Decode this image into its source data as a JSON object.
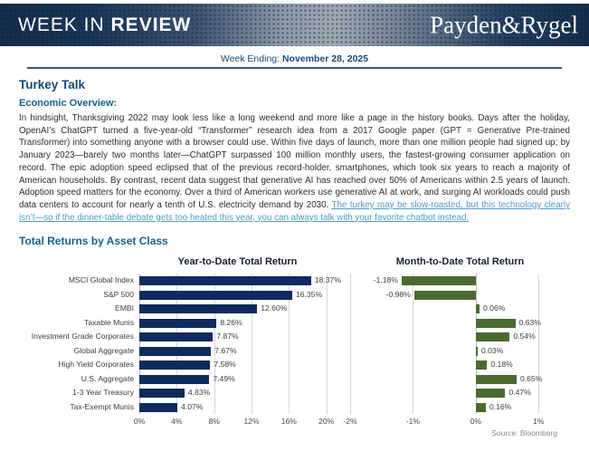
{
  "header": {
    "title_light": "WEEK IN ",
    "title_bold": "REVIEW",
    "logo": "Payden&Rygel"
  },
  "week_ending": {
    "label": "Week Ending: ",
    "date": "November 28, 2025"
  },
  "article": {
    "title": "Turkey Talk",
    "section_heading": "Economic Overview:",
    "body": "In hindsight, Thanksgiving 2022 may look less like a long weekend and more like a page in the history books. Days after the holiday, OpenAI’s ChatGPT turned a five-year-old “Transformer” research idea from a 2017 Google paper (GPT = Generative Pre-trained Transformer) into something anyone with a browser could use. Within five days of launch, more than one million people had signed up; by January 2023—barely two months later—ChatGPT surpassed 100 million monthly users, the fastest-growing consumer application on record. The epic adoption speed eclipsed that of the previous record-holder, smartphones, which took six years to reach a majority of American households. By contrast, recent data suggest that generative AI has reached over 50% of Americans within 2.5 years of launch. Adoption speed matters for the economy. Over a third of American workers use generative AI at work, and surging AI workloads could push data centers to account for nearly a tenth of U.S. electricity demand by 2030. ",
    "link_text": "The turkey may be slow-roasted, but this technology clearly isn’t—so if the dinner-table debate gets too heated this year, you can always talk with your favorite chatbot instead."
  },
  "charts_section": {
    "heading": "Total Returns by Asset Class",
    "source": "Source: Bloomberg"
  },
  "chart_data": [
    {
      "type": "bar",
      "orientation": "horizontal",
      "title": "Year-to-Date Total Return",
      "categories": [
        "MSCI Global Index",
        "S&P 500",
        "EMBI",
        "Taxable Munis",
        "Investment Grade Corporates",
        "Global Aggregate",
        "High Yield Corporates",
        "U.S. Aggregate",
        "1-3 Year Treasury",
        "Tax-Exempt Munis"
      ],
      "values": [
        18.37,
        16.35,
        12.6,
        8.26,
        7.87,
        7.67,
        7.58,
        7.49,
        4.83,
        4.07
      ],
      "labels": [
        "18.37%",
        "16.35%",
        "12.60%",
        "8.26%",
        "7.87%",
        "7.67%",
        "7.58%",
        "7.49%",
        "4.83%",
        "4.07%"
      ],
      "xlim": [
        0,
        21
      ],
      "ticks": [
        0,
        4,
        8,
        12,
        16,
        20
      ],
      "tick_labels": [
        "0%",
        "4%",
        "8%",
        "12%",
        "16%",
        "20%"
      ],
      "bar_color": "#0e2a5f",
      "grid": true,
      "show_category_labels": true,
      "legend": "none"
    },
    {
      "type": "bar",
      "orientation": "horizontal",
      "title": "Month-to-Date Total Return",
      "categories": [
        "MSCI Global Index",
        "S&P 500",
        "EMBI",
        "Taxable Munis",
        "Investment Grade Corporates",
        "Global Aggregate",
        "High Yield Corporates",
        "U.S. Aggregate",
        "1-3 Year Treasury",
        "Tax-Exempt Munis"
      ],
      "values": [
        -1.18,
        -0.98,
        0.06,
        0.63,
        0.54,
        0.03,
        0.18,
        0.65,
        0.47,
        0.16
      ],
      "labels": [
        "-1.18%",
        "-0.98%",
        "0.06%",
        "0.63%",
        "0.54%",
        "0.03%",
        "0.18%",
        "0.65%",
        "0.47%",
        "0.16%"
      ],
      "xlim": [
        -2,
        1.5
      ],
      "ticks": [
        -2,
        -1,
        0,
        1
      ],
      "tick_labels": [
        "-2%",
        "-1%",
        "0%",
        "1%"
      ],
      "bar_color": "#4a6b2e",
      "grid": true,
      "show_category_labels": false,
      "legend": "none"
    }
  ],
  "colors": {
    "masthead_navy": "#142e4c",
    "heading_blue": "#16608e",
    "title_navy": "#124a7a",
    "link_blue": "#4d9bca",
    "ytd_bar": "#0e2a5f",
    "mtd_bar": "#4a6b2e",
    "rule": "#31597f"
  }
}
